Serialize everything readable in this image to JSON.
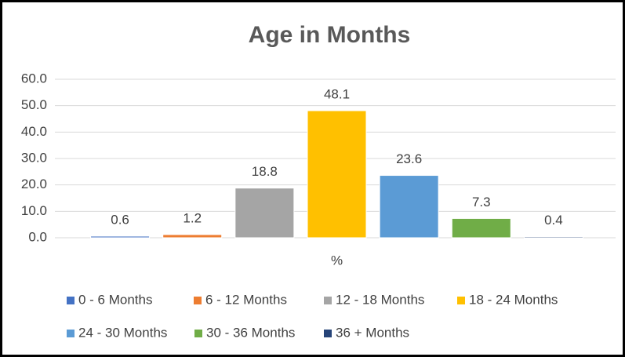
{
  "chart_data": {
    "type": "bar",
    "title": "Age in Months",
    "categories": [
      "%"
    ],
    "series": [
      {
        "name": "0 - 6 Months",
        "color": "#4472c4",
        "values": [
          0.6
        ]
      },
      {
        "name": "6 - 12 Months",
        "color": "#ed7d31",
        "values": [
          1.2
        ]
      },
      {
        "name": "12 - 18 Months",
        "color": "#a5a5a5",
        "values": [
          18.8
        ]
      },
      {
        "name": "18 - 24 Months",
        "color": "#ffc000",
        "values": [
          48.1
        ]
      },
      {
        "name": "24 - 30 Months",
        "color": "#5b9bd5",
        "values": [
          23.6
        ]
      },
      {
        "name": "30 - 36 Months",
        "color": "#70ad47",
        "values": [
          7.3
        ]
      },
      {
        "name": "36 + Months",
        "color": "#264478",
        "values": [
          0.4
        ]
      }
    ],
    "ylim": [
      0,
      60
    ],
    "yticks": [
      {
        "value": 0,
        "label": "0.0"
      },
      {
        "value": 10,
        "label": "10.0"
      },
      {
        "value": 20,
        "label": "20.0"
      },
      {
        "value": 30,
        "label": "30.0"
      },
      {
        "value": 40,
        "label": "40.0"
      },
      {
        "value": 50,
        "label": "50.0"
      },
      {
        "value": 60,
        "label": "60.0"
      }
    ],
    "grid": true,
    "legend": "bottom"
  }
}
